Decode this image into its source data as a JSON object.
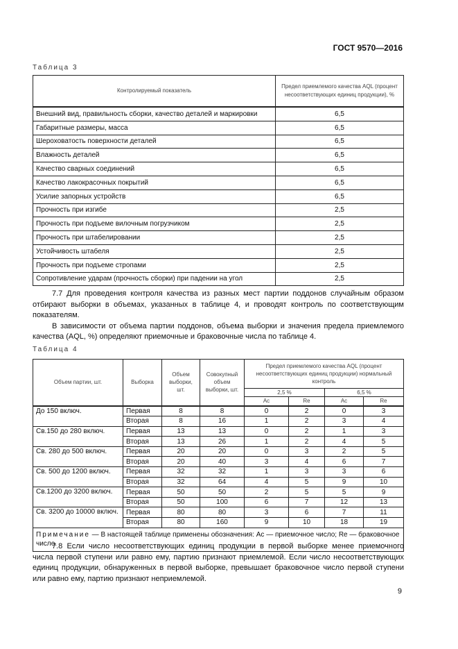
{
  "header": {
    "doc_id": "ГОСТ 9570—2016"
  },
  "table3": {
    "caption": "Таблица 3",
    "col1": "Контролируемый показатель",
    "col2": "Предел приемлемого качества AQL (процент несоответствующих единиц продукции), %",
    "rows": [
      {
        "name": "Внешний вид, правильность сборки, качество деталей и маркировки",
        "value": "6,5"
      },
      {
        "name": "Габаритные размеры, масса",
        "value": "6,5"
      },
      {
        "name": "Шероховатость поверхности деталей",
        "value": "6,5"
      },
      {
        "name": "Влажность деталей",
        "value": "6,5"
      },
      {
        "name": "Качество сварных соединений",
        "value": "6,5"
      },
      {
        "name": "Качество лакокрасочных покрытий",
        "value": "6,5"
      },
      {
        "name": "Усилие запорных устройств",
        "value": "6,5"
      },
      {
        "name": "Прочность при изгибе",
        "value": "2,5"
      },
      {
        "name": "Прочность при подъеме вилочным погрузчиком",
        "value": "2,5"
      },
      {
        "name": "Прочность при штабелировании",
        "value": "2,5"
      },
      {
        "name": "Устойчивость штабеля",
        "value": "2,5"
      },
      {
        "name": "Прочность при подъеме стропами",
        "value": "2,5"
      },
      {
        "name": "Сопротивление ударам (прочность сборки) при падении на угол",
        "value": "2,5"
      }
    ]
  },
  "para_7_7": [
    "7.7 Для проведения контроля качества из разных мест партии поддонов случайным образом отбирают выборки в объемах, указанных в таблице 4, и проводят контроль по соответствующим показателям.",
    "В зависимости от объема партии поддонов, объема выборки и значения предела приемлемого качества (AQL, %) определяют приемочные и браковочные числа по таблице 4."
  ],
  "table4": {
    "caption": "Таблица 4",
    "h_lot": "Объем партии, шт.",
    "h_sample": "Выборка",
    "h_size": "Объем выборки, шт.",
    "h_cum": "Совокупный объем выборки, шт.",
    "h_aql": "Предел приемлемого качества AQL (процент несоответствующих единиц продукции) нормальный контроль",
    "h_25": "2,5 %",
    "h_65": "6,5 %",
    "h_ac": "Ac",
    "h_re": "Re",
    "groups": [
      {
        "lot": "До 150 включ.",
        "rows": [
          [
            "Первая",
            "8",
            "8",
            "0",
            "2",
            "0",
            "3"
          ],
          [
            "Вторая",
            "8",
            "16",
            "1",
            "2",
            "3",
            "4"
          ]
        ]
      },
      {
        "lot": "Св.150 до 280 включ.",
        "rows": [
          [
            "Первая",
            "13",
            "13",
            "0",
            "2",
            "1",
            "3"
          ],
          [
            "Вторая",
            "13",
            "26",
            "1",
            "2",
            "4",
            "5"
          ]
        ]
      },
      {
        "lot": "Св. 280 до 500 включ.",
        "rows": [
          [
            "Первая",
            "20",
            "20",
            "0",
            "3",
            "2",
            "5"
          ],
          [
            "Вторая",
            "20",
            "40",
            "3",
            "4",
            "6",
            "7"
          ]
        ]
      },
      {
        "lot": "Св. 500 до 1200 включ.",
        "rows": [
          [
            "Первая",
            "32",
            "32",
            "1",
            "3",
            "3",
            "6"
          ],
          [
            "Вторая",
            "32",
            "64",
            "4",
            "5",
            "9",
            "10"
          ]
        ]
      },
      {
        "lot": "Св.1200 до 3200 включ.",
        "rows": [
          [
            "Первая",
            "50",
            "50",
            "2",
            "5",
            "5",
            "9"
          ],
          [
            "Вторая",
            "50",
            "100",
            "6",
            "7",
            "12",
            "13"
          ]
        ]
      },
      {
        "lot": "Св. 3200 до 10000 включ.",
        "rows": [
          [
            "Первая",
            "80",
            "80",
            "3",
            "6",
            "7",
            "11"
          ],
          [
            "Вторая",
            "80",
            "160",
            "9",
            "10",
            "18",
            "19"
          ]
        ]
      }
    ],
    "note_label": "Примечание",
    "note_text": " — В настоящей таблице применены обозначения: Ac — приемочное число; Re — браковочное число."
  },
  "para_7_8": "7.8 Если число несоответствующих единиц продукции в первой выборке менее приемочного числа первой ступени или равно ему, партию признают приемлемой. Если число несоответствующих единиц продукции, обнаруженных в первой выборке, превышает браковочное число первой ступени или равно ему, партию признают неприемлемой.",
  "page_number": "9"
}
